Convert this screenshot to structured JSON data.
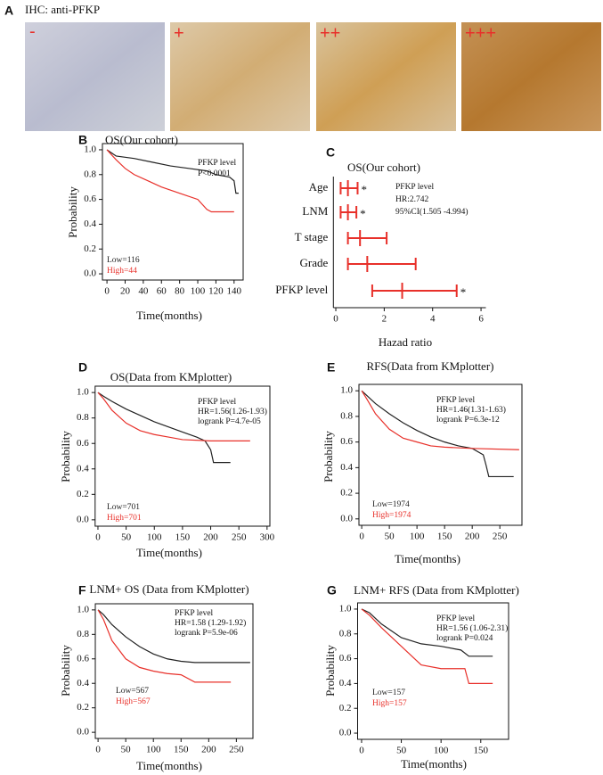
{
  "panel_a": {
    "label": "A",
    "title": "IHC: anti-PFKP",
    "images": [
      {
        "score": "-"
      },
      {
        "score": "+"
      },
      {
        "score": "++"
      },
      {
        "score": "+++"
      }
    ]
  },
  "chart_data": [
    {
      "panel": "B",
      "type": "line",
      "title": "OS(Our cohort)",
      "x_label": "Time(months)",
      "y_label": "Probability",
      "xlim": [
        -5,
        150
      ],
      "xticks": [
        0,
        20,
        40,
        60,
        80,
        100,
        120,
        140
      ],
      "ylim": [
        -0.05,
        1.05
      ],
      "yticks": [
        {
          "value": 0,
          "label": "0.0"
        },
        {
          "value": 0.2,
          "label": "0.2"
        },
        {
          "value": 0.4,
          "label": "0.4"
        },
        {
          "value": 0.6,
          "label": "0.6"
        },
        {
          "value": 0.8,
          "label": "0.8"
        },
        {
          "value": 1,
          "label": "1.0"
        }
      ],
      "annotations": [
        "PFKP level",
        "P<0.0001"
      ],
      "series": [
        {
          "name": "Low=116",
          "color": "#222222",
          "x": [
            0,
            10,
            30,
            50,
            70,
            90,
            110,
            120,
            135,
            140,
            142,
            145
          ],
          "values": [
            1,
            0.95,
            0.93,
            0.9,
            0.87,
            0.85,
            0.83,
            0.8,
            0.78,
            0.75,
            0.65,
            0.65
          ]
        },
        {
          "name": "High=44",
          "color": "#e8302a",
          "x": [
            0,
            10,
            20,
            30,
            45,
            60,
            80,
            100,
            110,
            115,
            140
          ],
          "values": [
            1,
            0.92,
            0.85,
            0.8,
            0.75,
            0.7,
            0.65,
            0.6,
            0.52,
            0.5,
            0.5
          ]
        }
      ]
    },
    {
      "panel": "C",
      "type": "forest",
      "title": "OS(Our cohort)",
      "x_label": "Hazad ratio",
      "xlim": [
        -0.1,
        6.2
      ],
      "xticks": [
        0,
        2,
        4,
        6
      ],
      "color": "#e8302a",
      "categories": [
        "Age",
        "LNM",
        "T stage",
        "Grade",
        "PFKP level"
      ],
      "values": [
        0.5,
        0.5,
        1.0,
        1.3,
        2.742
      ],
      "ci_low": [
        0.2,
        0.2,
        0.5,
        0.5,
        1.505
      ],
      "ci_high": [
        0.9,
        0.85,
        2.1,
        3.3,
        4.994
      ],
      "significance": [
        "*",
        "*",
        null,
        null,
        "*"
      ],
      "annotations": [
        "PFKP level",
        "HR:2.742",
        "95%CI(1.505 -4.994)"
      ]
    },
    {
      "panel": "D",
      "type": "line",
      "title": "OS(Data from KMplotter)",
      "x_label": "Time(months)",
      "y_label": "Probability",
      "xlim": [
        -5,
        305
      ],
      "xticks": [
        0,
        50,
        100,
        150,
        200,
        250,
        300
      ],
      "ylim": [
        -0.05,
        1.05
      ],
      "yticks": [
        {
          "value": 0,
          "label": "0.0"
        },
        {
          "value": 0.2,
          "label": "0.2"
        },
        {
          "value": 0.4,
          "label": "0.4"
        },
        {
          "value": 0.6,
          "label": "0.6"
        },
        {
          "value": 0.8,
          "label": "0.8"
        },
        {
          "value": 1,
          "label": "1.0"
        }
      ],
      "annotations": [
        "PFKP level",
        "HR=1.56(1.26-1.93)",
        "logrank P=4.7e-05"
      ],
      "series": [
        {
          "name": "Low=701",
          "color": "#222222",
          "x": [
            0,
            10,
            25,
            50,
            75,
            100,
            125,
            150,
            175,
            190,
            200,
            205,
            235
          ],
          "values": [
            1,
            0.97,
            0.93,
            0.87,
            0.82,
            0.77,
            0.73,
            0.69,
            0.65,
            0.62,
            0.55,
            0.45,
            0.45
          ]
        },
        {
          "name": "High=701",
          "color": "#e8302a",
          "x": [
            0,
            10,
            25,
            50,
            75,
            100,
            125,
            150,
            200,
            270
          ],
          "values": [
            1,
            0.95,
            0.86,
            0.76,
            0.7,
            0.67,
            0.65,
            0.63,
            0.62,
            0.62
          ]
        }
      ]
    },
    {
      "panel": "E",
      "type": "line",
      "title": "RFS(Data from KMplotter)",
      "x_label": "Time(months)",
      "y_label": "Probability",
      "xlim": [
        -5,
        290
      ],
      "xticks": [
        0,
        50,
        100,
        150,
        200,
        250
      ],
      "ylim": [
        -0.05,
        1.05
      ],
      "yticks": [
        {
          "value": 0,
          "label": "0.0"
        },
        {
          "value": 0.2,
          "label": "0.2"
        },
        {
          "value": 0.4,
          "label": "0.4"
        },
        {
          "value": 0.6,
          "label": "0.6"
        },
        {
          "value": 0.8,
          "label": "0.8"
        },
        {
          "value": 1,
          "label": "1.0"
        }
      ],
      "annotations": [
        "PFKP level",
        "HR=1.46(1.31-1.63)",
        "logrank P=6.3e-12"
      ],
      "series": [
        {
          "name": "Low=1974",
          "color": "#222222",
          "x": [
            0,
            10,
            25,
            50,
            75,
            100,
            125,
            150,
            175,
            200,
            220,
            225,
            230,
            275
          ],
          "values": [
            1,
            0.96,
            0.9,
            0.82,
            0.75,
            0.69,
            0.64,
            0.6,
            0.57,
            0.55,
            0.5,
            0.42,
            0.33,
            0.33
          ]
        },
        {
          "name": "High=1974",
          "color": "#e8302a",
          "x": [
            0,
            10,
            25,
            50,
            75,
            100,
            125,
            150,
            200,
            285
          ],
          "values": [
            1,
            0.93,
            0.82,
            0.7,
            0.63,
            0.6,
            0.57,
            0.56,
            0.55,
            0.54
          ]
        }
      ]
    },
    {
      "panel": "F",
      "type": "line",
      "title": "LNM+ OS (Data from KMplotter)",
      "x_label": "Time(months)",
      "y_label": "Probability",
      "xlim": [
        -5,
        280
      ],
      "xticks": [
        0,
        50,
        100,
        150,
        200,
        250
      ],
      "ylim": [
        -0.05,
        1.05
      ],
      "yticks": [
        {
          "value": 0,
          "label": "0.0"
        },
        {
          "value": 0.2,
          "label": "0.2"
        },
        {
          "value": 0.4,
          "label": "0.4"
        },
        {
          "value": 0.6,
          "label": "0.6"
        },
        {
          "value": 0.8,
          "label": "0.8"
        },
        {
          "value": 1,
          "label": "1.0"
        }
      ],
      "annotations": [
        "PFKP level",
        "HR=1.58 (1.29-1.92)",
        "logrank P=5.9e-06"
      ],
      "series": [
        {
          "name": "Low=567",
          "color": "#222222",
          "x": [
            0,
            10,
            25,
            50,
            75,
            100,
            125,
            150,
            175,
            275
          ],
          "values": [
            1,
            0.96,
            0.88,
            0.78,
            0.7,
            0.64,
            0.6,
            0.58,
            0.57,
            0.57
          ]
        },
        {
          "name": "High=567",
          "color": "#e8302a",
          "x": [
            0,
            10,
            25,
            50,
            75,
            100,
            125,
            150,
            175,
            240
          ],
          "values": [
            1,
            0.92,
            0.75,
            0.6,
            0.53,
            0.5,
            0.48,
            0.47,
            0.41,
            0.41
          ]
        }
      ]
    },
    {
      "panel": "G",
      "type": "line",
      "title": "LNM+ RFS (Data from KMplotter)",
      "x_label": "Time(months)",
      "y_label": "Probability",
      "xlim": [
        -5,
        185
      ],
      "xticks": [
        0,
        50,
        100,
        150
      ],
      "ylim": [
        -0.05,
        1.05
      ],
      "yticks": [
        {
          "value": 0,
          "label": "0.0"
        },
        {
          "value": 0.2,
          "label": "0.2"
        },
        {
          "value": 0.4,
          "label": "0.4"
        },
        {
          "value": 0.6,
          "label": "0.6"
        },
        {
          "value": 0.8,
          "label": "0.8"
        },
        {
          "value": 1,
          "label": "1.0"
        }
      ],
      "annotations": [
        "PFKP level",
        "HR=1.56 (1.06-2.31)",
        "logrank P=0.024"
      ],
      "series": [
        {
          "name": "Low=157",
          "color": "#222222",
          "x": [
            0,
            10,
            25,
            50,
            75,
            100,
            125,
            135,
            165
          ],
          "values": [
            1,
            0.97,
            0.88,
            0.77,
            0.72,
            0.7,
            0.67,
            0.62,
            0.62
          ]
        },
        {
          "name": "High=157",
          "color": "#e8302a",
          "x": [
            0,
            10,
            25,
            50,
            75,
            100,
            130,
            135,
            165
          ],
          "values": [
            1,
            0.95,
            0.85,
            0.7,
            0.55,
            0.52,
            0.52,
            0.4,
            0.4
          ]
        }
      ]
    }
  ]
}
